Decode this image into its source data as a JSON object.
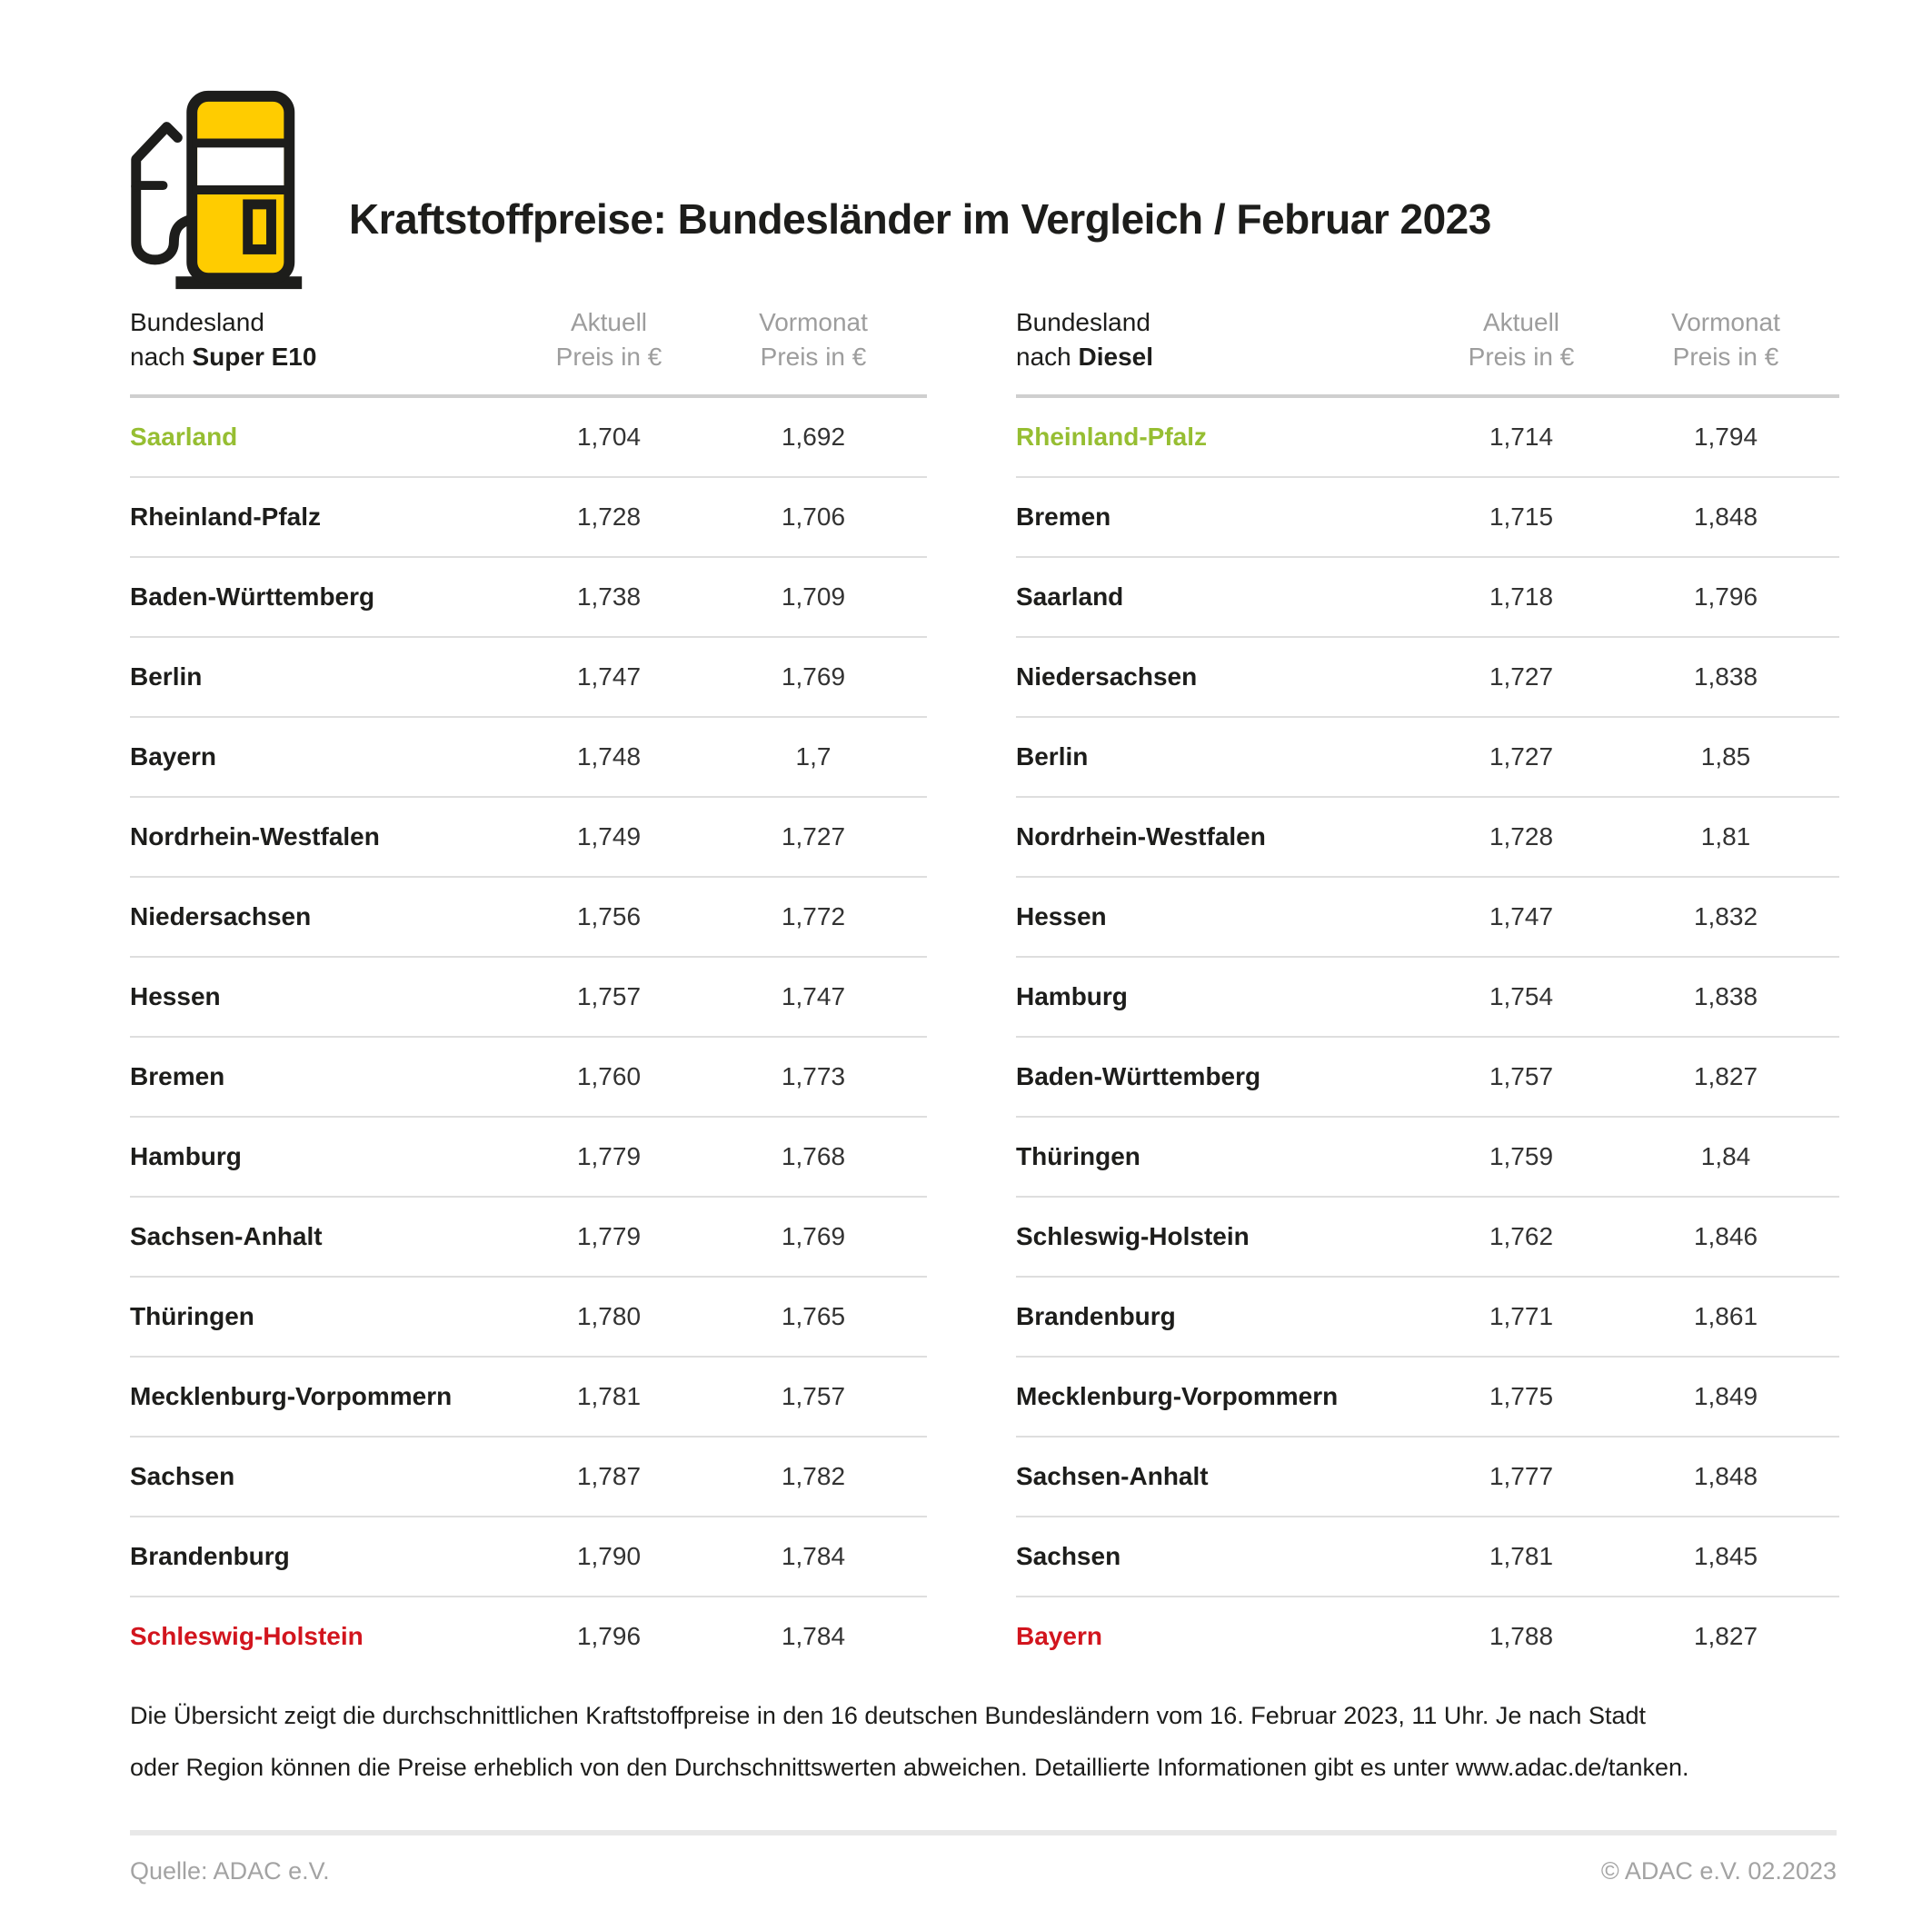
{
  "header": {
    "title": "Kraftstoffpreise: Bundesländer im Vergleich / Februar 2023"
  },
  "colors": {
    "green": "#96be32",
    "red": "#d2151e",
    "pump_yellow": "#ffcc00",
    "pump_black": "#1d1d1b"
  },
  "col_headers": {
    "aktuell": "Aktuell",
    "vormonat": "Vormonat",
    "unit": "Preis in €"
  },
  "tables": [
    {
      "label_line1": "Bundesland",
      "label_prefix": "nach",
      "label_fuel": "Super E10",
      "rows": [
        {
          "land": "Saarland",
          "aktuell": "1,704",
          "vormonat": "1,692",
          "highlight": "green"
        },
        {
          "land": "Rheinland-Pfalz",
          "aktuell": "1,728",
          "vormonat": "1,706",
          "highlight": ""
        },
        {
          "land": "Baden-Württemberg",
          "aktuell": "1,738",
          "vormonat": "1,709",
          "highlight": ""
        },
        {
          "land": "Berlin",
          "aktuell": "1,747",
          "vormonat": "1,769",
          "highlight": ""
        },
        {
          "land": "Bayern",
          "aktuell": "1,748",
          "vormonat": "1,7",
          "highlight": ""
        },
        {
          "land": "Nordrhein-Westfalen",
          "aktuell": "1,749",
          "vormonat": "1,727",
          "highlight": ""
        },
        {
          "land": "Niedersachsen",
          "aktuell": "1,756",
          "vormonat": "1,772",
          "highlight": ""
        },
        {
          "land": "Hessen",
          "aktuell": "1,757",
          "vormonat": "1,747",
          "highlight": ""
        },
        {
          "land": "Bremen",
          "aktuell": "1,760",
          "vormonat": "1,773",
          "highlight": ""
        },
        {
          "land": "Hamburg",
          "aktuell": "1,779",
          "vormonat": "1,768",
          "highlight": ""
        },
        {
          "land": "Sachsen-Anhalt",
          "aktuell": "1,779",
          "vormonat": "1,769",
          "highlight": ""
        },
        {
          "land": "Thüringen",
          "aktuell": "1,780",
          "vormonat": "1,765",
          "highlight": ""
        },
        {
          "land": "Mecklenburg-Vorpommern",
          "aktuell": "1,781",
          "vormonat": "1,757",
          "highlight": ""
        },
        {
          "land": "Sachsen",
          "aktuell": "1,787",
          "vormonat": "1,782",
          "highlight": ""
        },
        {
          "land": "Brandenburg",
          "aktuell": "1,790",
          "vormonat": "1,784",
          "highlight": ""
        },
        {
          "land": "Schleswig-Holstein",
          "aktuell": "1,796",
          "vormonat": "1,784",
          "highlight": "red"
        }
      ]
    },
    {
      "label_line1": "Bundesland",
      "label_prefix": "nach",
      "label_fuel": "Diesel",
      "rows": [
        {
          "land": "Rheinland-Pfalz",
          "aktuell": "1,714",
          "vormonat": "1,794",
          "highlight": "green"
        },
        {
          "land": "Bremen",
          "aktuell": "1,715",
          "vormonat": "1,848",
          "highlight": ""
        },
        {
          "land": "Saarland",
          "aktuell": "1,718",
          "vormonat": "1,796",
          "highlight": ""
        },
        {
          "land": "Niedersachsen",
          "aktuell": "1,727",
          "vormonat": "1,838",
          "highlight": ""
        },
        {
          "land": "Berlin",
          "aktuell": "1,727",
          "vormonat": "1,85",
          "highlight": ""
        },
        {
          "land": "Nordrhein-Westfalen",
          "aktuell": "1,728",
          "vormonat": "1,81",
          "highlight": ""
        },
        {
          "land": "Hessen",
          "aktuell": "1,747",
          "vormonat": "1,832",
          "highlight": ""
        },
        {
          "land": "Hamburg",
          "aktuell": "1,754",
          "vormonat": "1,838",
          "highlight": ""
        },
        {
          "land": "Baden-Württemberg",
          "aktuell": "1,757",
          "vormonat": "1,827",
          "highlight": ""
        },
        {
          "land": "Thüringen",
          "aktuell": "1,759",
          "vormonat": "1,84",
          "highlight": ""
        },
        {
          "land": "Schleswig-Holstein",
          "aktuell": "1,762",
          "vormonat": "1,846",
          "highlight": ""
        },
        {
          "land": "Brandenburg",
          "aktuell": "1,771",
          "vormonat": "1,861",
          "highlight": ""
        },
        {
          "land": "Mecklenburg-Vorpommern",
          "aktuell": "1,775",
          "vormonat": "1,849",
          "highlight": ""
        },
        {
          "land": "Sachsen-Anhalt",
          "aktuell": "1,777",
          "vormonat": "1,848",
          "highlight": ""
        },
        {
          "land": "Sachsen",
          "aktuell": "1,781",
          "vormonat": "1,845",
          "highlight": ""
        },
        {
          "land": "Bayern",
          "aktuell": "1,788",
          "vormonat": "1,827",
          "highlight": "red"
        }
      ]
    }
  ],
  "footnote": "Die Übersicht zeigt die durchschnittlichen Kraftstoffpreise in den 16 deutschen Bundesländern vom 16. Februar 2023, 11 Uhr. Je nach Stadt oder Region können die Preise erheblich von den Durchschnittswerten abweichen. Detaillierte Informationen gibt es unter www.adac.de/tanken.",
  "source_left": "Quelle: ADAC e.V.",
  "source_right": "© ADAC e.V. 02.2023",
  "chart_data": [
    {
      "type": "table",
      "title": "Bundesland nach Super E10 – Preis in €",
      "columns": [
        "Bundesland",
        "Aktuell Preis in €",
        "Vormonat Preis in €"
      ],
      "rows": [
        [
          "Saarland",
          1.704,
          1.692
        ],
        [
          "Rheinland-Pfalz",
          1.728,
          1.706
        ],
        [
          "Baden-Württemberg",
          1.738,
          1.709
        ],
        [
          "Berlin",
          1.747,
          1.769
        ],
        [
          "Bayern",
          1.748,
          1.7
        ],
        [
          "Nordrhein-Westfalen",
          1.749,
          1.727
        ],
        [
          "Niedersachsen",
          1.756,
          1.772
        ],
        [
          "Hessen",
          1.757,
          1.747
        ],
        [
          "Bremen",
          1.76,
          1.773
        ],
        [
          "Hamburg",
          1.779,
          1.768
        ],
        [
          "Sachsen-Anhalt",
          1.779,
          1.769
        ],
        [
          "Thüringen",
          1.78,
          1.765
        ],
        [
          "Mecklenburg-Vorpommern",
          1.781,
          1.757
        ],
        [
          "Sachsen",
          1.787,
          1.782
        ],
        [
          "Brandenburg",
          1.79,
          1.784
        ],
        [
          "Schleswig-Holstein",
          1.796,
          1.784
        ]
      ],
      "annotations": {
        "cheapest": "Saarland (grün)",
        "most_expensive": "Schleswig-Holstein (rot)"
      }
    },
    {
      "type": "table",
      "title": "Bundesland nach Diesel – Preis in €",
      "columns": [
        "Bundesland",
        "Aktuell Preis in €",
        "Vormonat Preis in €"
      ],
      "rows": [
        [
          "Rheinland-Pfalz",
          1.714,
          1.794
        ],
        [
          "Bremen",
          1.715,
          1.848
        ],
        [
          "Saarland",
          1.718,
          1.796
        ],
        [
          "Niedersachsen",
          1.727,
          1.838
        ],
        [
          "Berlin",
          1.727,
          1.85
        ],
        [
          "Nordrhein-Westfalen",
          1.728,
          1.81
        ],
        [
          "Hessen",
          1.747,
          1.832
        ],
        [
          "Hamburg",
          1.754,
          1.838
        ],
        [
          "Baden-Württemberg",
          1.757,
          1.827
        ],
        [
          "Thüringen",
          1.759,
          1.84
        ],
        [
          "Schleswig-Holstein",
          1.762,
          1.846
        ],
        [
          "Brandenburg",
          1.771,
          1.861
        ],
        [
          "Mecklenburg-Vorpommern",
          1.775,
          1.849
        ],
        [
          "Sachsen-Anhalt",
          1.777,
          1.848
        ],
        [
          "Sachsen",
          1.781,
          1.845
        ],
        [
          "Bayern",
          1.788,
          1.827
        ]
      ],
      "annotations": {
        "cheapest": "Rheinland-Pfalz (grün)",
        "most_expensive": "Bayern (rot)"
      }
    }
  ]
}
